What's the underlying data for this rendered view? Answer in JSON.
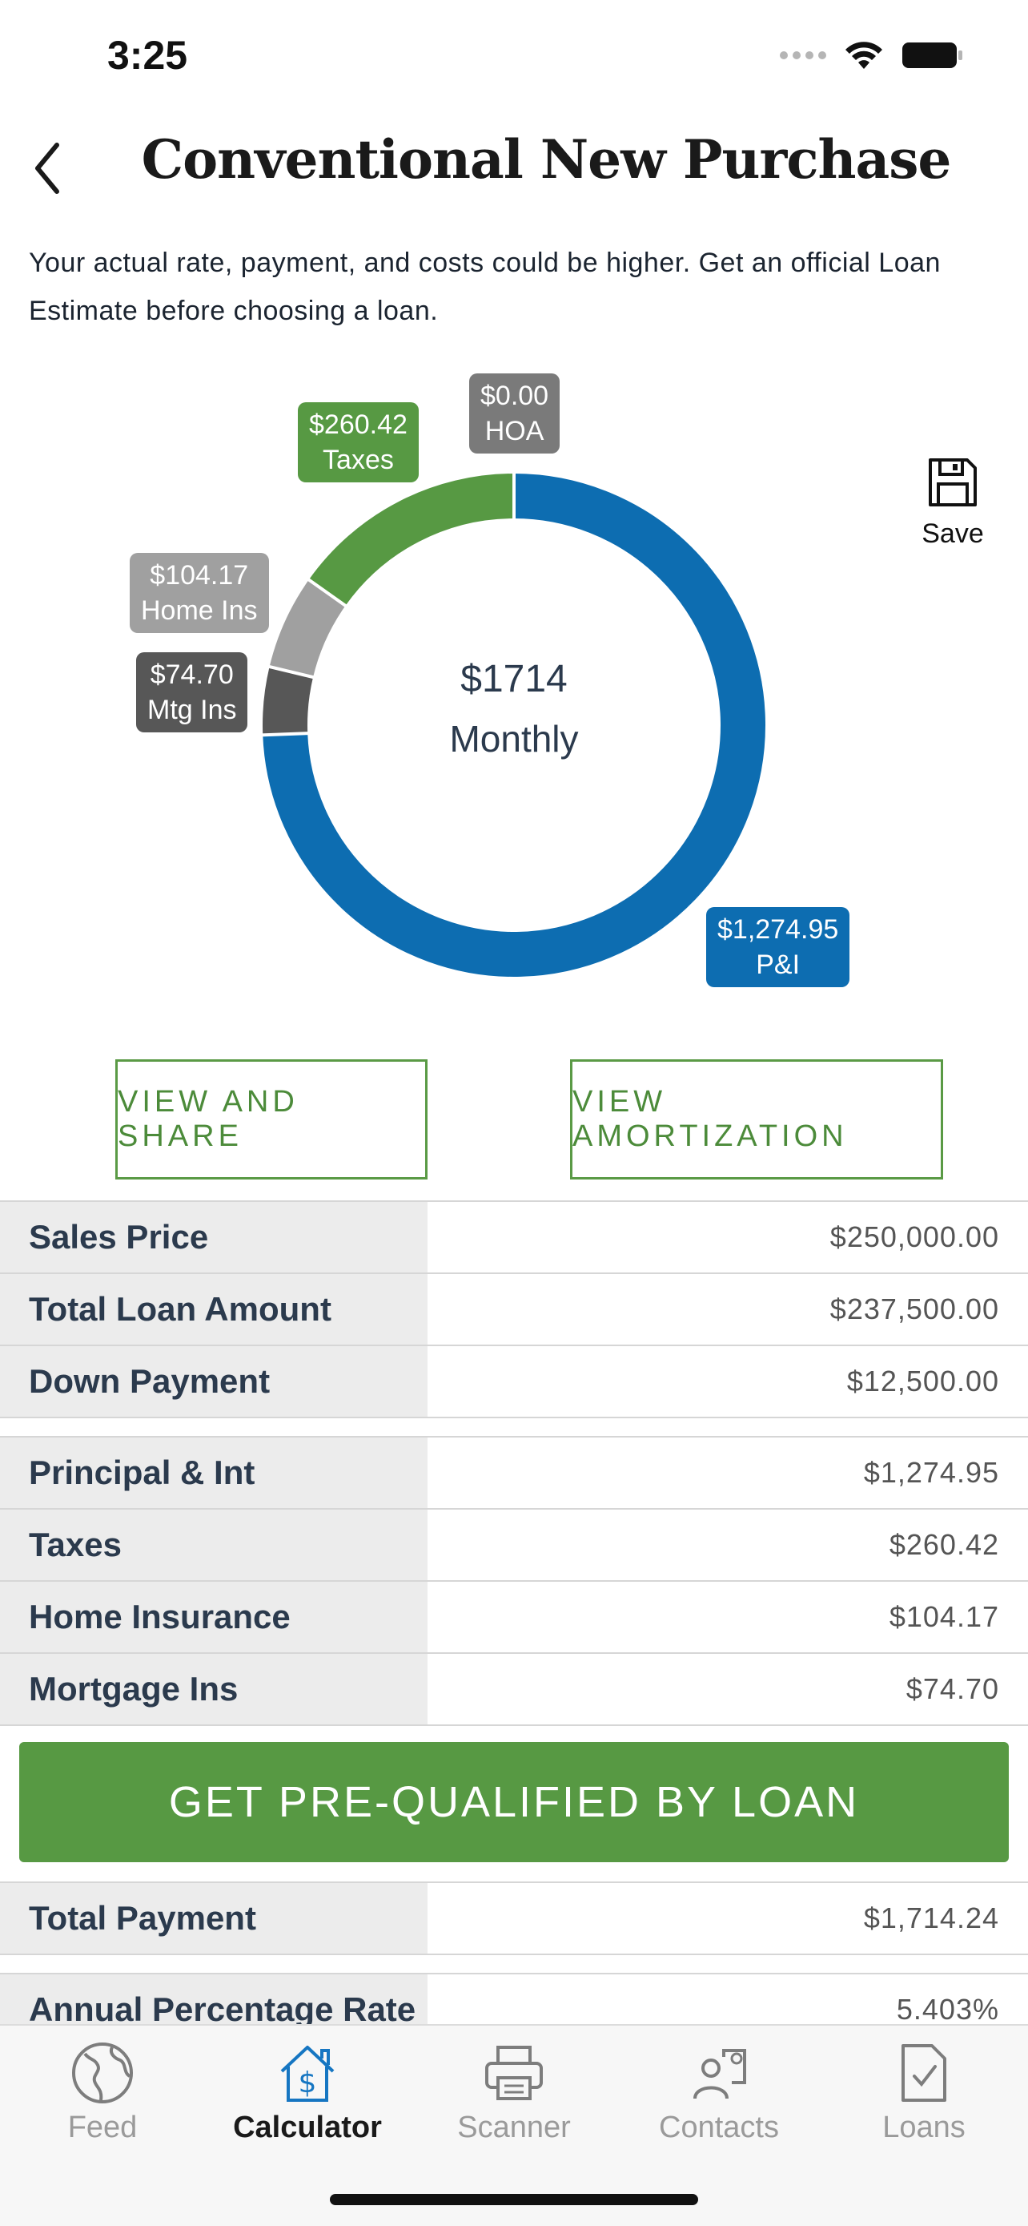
{
  "status_bar": {
    "time": "3:25"
  },
  "header": {
    "title": "Conventional New Purchase"
  },
  "disclaimer": "Your actual rate, payment, and costs could be higher. Get an official Loan Estimate before choosing a loan.",
  "chart": {
    "center_amount": "$1714",
    "center_label": "Monthly",
    "segments": [
      {
        "name": "P&I",
        "amount": "$1,274.95",
        "value": 1274.95,
        "color": "#0d6db1"
      },
      {
        "name": "Mtg Ins",
        "amount": "$74.70",
        "value": 74.7,
        "color": "#575757"
      },
      {
        "name": "Home Ins",
        "amount": "$104.17",
        "value": 104.17,
        "color": "#a0a0a0"
      },
      {
        "name": "Taxes",
        "amount": "$260.42",
        "value": 260.42,
        "color": "#579943"
      },
      {
        "name": "HOA",
        "amount": "$0.00",
        "value": 0,
        "color": "#7a7a7a"
      }
    ]
  },
  "save": {
    "label": "Save"
  },
  "buttons": {
    "view_share": "VIEW AND SHARE",
    "view_amortization": "VIEW AMORTIZATION",
    "prequalify": "GET PRE-QUALIFIED BY LOAN"
  },
  "loan_table": [
    {
      "label": "Sales Price",
      "value": "$250,000.00"
    },
    {
      "label": "Total Loan Amount",
      "value": "$237,500.00"
    },
    {
      "label": "Down Payment",
      "value": "$12,500.00"
    }
  ],
  "payment_table": [
    {
      "label": "Principal & Int",
      "value": "$1,274.95"
    },
    {
      "label": "Taxes",
      "value": "$260.42"
    },
    {
      "label": "Home Insurance",
      "value": "$104.17"
    },
    {
      "label": "Mortgage Ins",
      "value": "$74.70"
    }
  ],
  "total_table": [
    {
      "label": "Total Payment",
      "value": "$1,714.24"
    }
  ],
  "apr_table": [
    {
      "label": "Annual Percentage Rate",
      "value": "5.403%"
    }
  ],
  "tabs": [
    {
      "label": "Feed",
      "icon": "globe-icon",
      "active": false
    },
    {
      "label": "Calculator",
      "icon": "house-dollar-icon",
      "active": true
    },
    {
      "label": "Scanner",
      "icon": "printer-icon",
      "active": false
    },
    {
      "label": "Contacts",
      "icon": "contacts-icon",
      "active": false
    },
    {
      "label": "Loans",
      "icon": "document-check-icon",
      "active": false
    }
  ]
}
